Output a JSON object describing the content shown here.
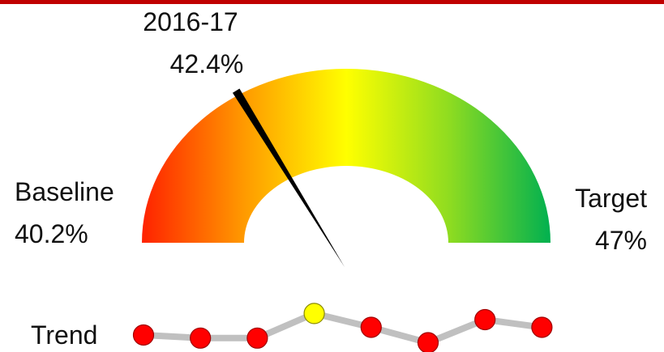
{
  "chart_data": {
    "type": "gauge",
    "min_label": "Baseline",
    "min": 40.2,
    "min_value_label": "40.2%",
    "max_label": "Target",
    "max": 47,
    "max_value_label": "47%",
    "value_name": "2016-17",
    "value": 42.4,
    "value_label": "42.4%",
    "colors": [
      "#ff2200",
      "#ff9a00",
      "#ffff00",
      "#8fdc20",
      "#00b050"
    ],
    "needle_color": "#000000",
    "trend": {
      "type": "line",
      "label": "Trend",
      "values": [
        41.0,
        40.8,
        40.8,
        42.4,
        41.5,
        40.5,
        42.0,
        41.5
      ],
      "ylim": [
        40,
        43
      ],
      "color": "#c0c0c0",
      "marker_color": "#ff0000",
      "highlight_index": 3,
      "highlight_color": "#ffff00"
    }
  }
}
